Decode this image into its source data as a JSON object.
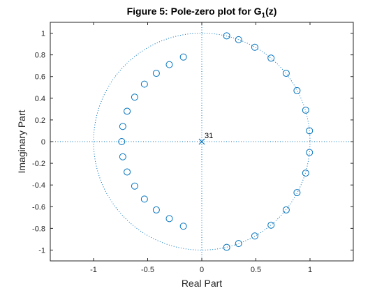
{
  "chart_data": {
    "type": "scatter",
    "title_main": "Figure 5: Pole-zero plot for G",
    "title_sub": "1",
    "title_end": "(z)",
    "xlabel": "Real Part",
    "ylabel": "Imaginary Part",
    "xlim": [
      -1.4,
      1.4
    ],
    "ylim": [
      -1.1,
      1.1
    ],
    "xticks": [
      -1,
      -0.5,
      0,
      0.5,
      1
    ],
    "xtick_labels": [
      "-1",
      "-0.5",
      "0",
      "0.5",
      "1"
    ],
    "yticks": [
      -1,
      -0.8,
      -0.6,
      -0.4,
      -0.2,
      0,
      0.2,
      0.4,
      0.6,
      0.8,
      1
    ],
    "ytick_labels": [
      "-1",
      "-0.8",
      "-0.6",
      "-0.4",
      "-0.2",
      "0",
      "0.2",
      "0.4",
      "0.6",
      "0.8",
      "1"
    ],
    "grid": false,
    "unit_circle": true,
    "series_color": "#0072bd",
    "zeros": [
      [
        0.23,
        0.975
      ],
      [
        0.34,
        0.94
      ],
      [
        0.49,
        0.87
      ],
      [
        0.64,
        0.77
      ],
      [
        0.78,
        0.63
      ],
      [
        0.88,
        0.47
      ],
      [
        0.96,
        0.29
      ],
      [
        0.995,
        0.1
      ],
      [
        0.995,
        -0.1
      ],
      [
        0.96,
        -0.29
      ],
      [
        0.88,
        -0.47
      ],
      [
        0.78,
        -0.63
      ],
      [
        0.64,
        -0.77
      ],
      [
        0.49,
        -0.87
      ],
      [
        0.34,
        -0.94
      ],
      [
        0.23,
        -0.975
      ],
      [
        -0.17,
        0.78
      ],
      [
        -0.3,
        0.71
      ],
      [
        -0.42,
        0.63
      ],
      [
        -0.53,
        0.53
      ],
      [
        -0.62,
        0.41
      ],
      [
        -0.69,
        0.28
      ],
      [
        -0.73,
        0.14
      ],
      [
        -0.74,
        0.0
      ],
      [
        -0.73,
        -0.14
      ],
      [
        -0.69,
        -0.28
      ],
      [
        -0.62,
        -0.41
      ],
      [
        -0.53,
        -0.53
      ],
      [
        -0.42,
        -0.63
      ],
      [
        -0.3,
        -0.71
      ],
      [
        -0.17,
        -0.78
      ]
    ],
    "poles": [
      [
        0,
        0
      ]
    ],
    "pole_multiplicity_label": "31"
  }
}
